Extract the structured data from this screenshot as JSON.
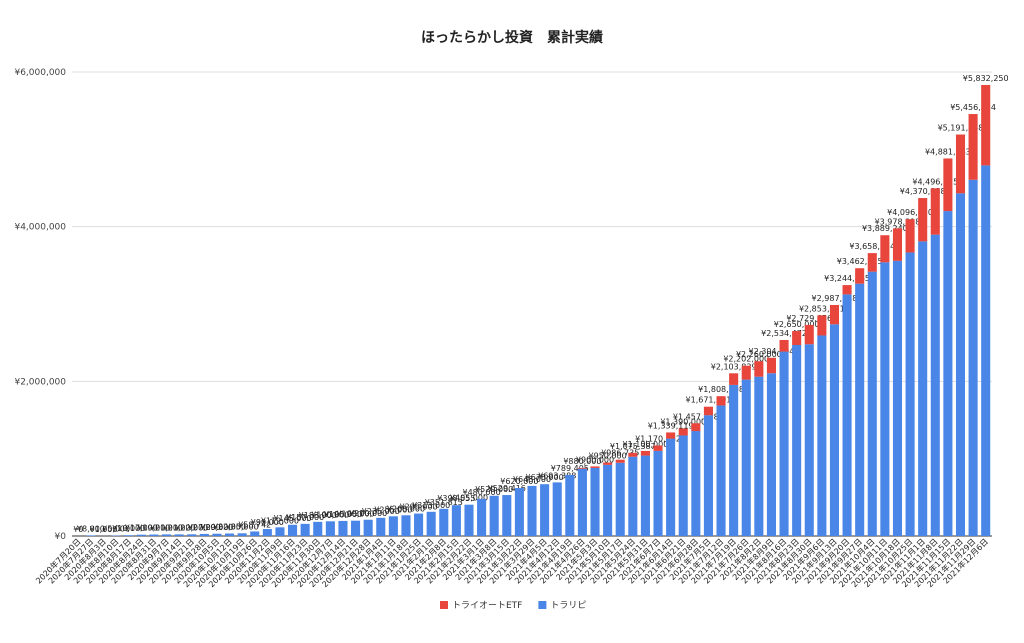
{
  "chart_data": {
    "type": "stacked_bar",
    "title": "ほったらかし投資　累計実績",
    "categories": [
      "2020年7月20日",
      "2020年7月27日",
      "2020年8月3日",
      "2020年8月10日",
      "2020年8月17日",
      "2020年8月24日",
      "2020年8月31日",
      "2020年9月7日",
      "2020年9月14日",
      "2020年9月21日",
      "2020年9月28日",
      "2020年10月5日",
      "2020年10月12日",
      "2020年10月19日",
      "2020年10月26日",
      "2020年11月2日",
      "2020年11月9日",
      "2020年11月16日",
      "2020年11月23日",
      "2020年11月30日",
      "2020年12月7日",
      "2020年12月14日",
      "2020年12月21日",
      "2020年12月28日",
      "2021年1月4日",
      "2021年1月11日",
      "2021年1月18日",
      "2021年1月25日",
      "2021年2月1日",
      "2021年2月8日",
      "2021年2月15日",
      "2021年2月22日",
      "2021年3月1日",
      "2021年3月8日",
      "2021年3月15日",
      "2021年3月22日",
      "2021年3月29日",
      "2021年4月5日",
      "2021年4月12日",
      "2021年4月19日",
      "2021年4月26日",
      "2021年5月3日",
      "2021年5月10日",
      "2021年5月17日",
      "2021年5月24日",
      "2021年5月31日",
      "2021年6月7日",
      "2021年6月14日",
      "2021年6月21日",
      "2021年6月28日",
      "2021年7月5日",
      "2021年7月12日",
      "2021年7月19日",
      "2021年7月26日",
      "2021年8月2日",
      "2021年8月9日",
      "2021年8月16日",
      "2021年8月23日",
      "2021年8月30日",
      "2021年9月6日",
      "2021年9月13日",
      "2021年9月20日",
      "2021年9月27日",
      "2021年10月4日",
      "2021年10月11日",
      "2021年10月18日",
      "2021年10月25日",
      "2021年11月1日",
      "2021年11月8日",
      "2021年11月15日",
      "2021年11月22日",
      "2021年11月29日",
      "2021年12月6日"
    ],
    "series": [
      {
        "name": "トライオートETF",
        "color": "#e8453c",
        "values": [
          0,
          0,
          0,
          0,
          0,
          0,
          0,
          0,
          0,
          0,
          0,
          0,
          0,
          0,
          0,
          0,
          0,
          0,
          0,
          0,
          0,
          0,
          0,
          0,
          0,
          0,
          0,
          0,
          0,
          0,
          0,
          0,
          0,
          0,
          0,
          0,
          0,
          0,
          0,
          0,
          10000,
          20000,
          30000,
          40000,
          50000,
          60000,
          70000,
          80000,
          90000,
          100000,
          110000,
          120000,
          150000,
          180000,
          200000,
          200000,
          150000,
          180000,
          250000,
          260000,
          250000,
          120000,
          200000,
          240000,
          350000,
          420000,
          430000,
          560000,
          600000,
          680000,
          760000,
          850000,
          1040000
        ]
      },
      {
        "name": "トラリピ",
        "color": "#4a86e8",
        "values": [
          0,
          8000,
          1000,
          5000,
          10000,
          17000,
          19000,
          21000,
          21000,
          22000,
          27000,
          29000,
          32000,
          35000,
          58742,
          90000,
          112000,
          145000,
          157000,
          183000,
          190000,
          195000,
          198000,
          210000,
          235000,
          255000,
          268000,
          290000,
          313000,
          351813,
          398555,
          405000,
          480000,
          520000,
          529416,
          620000,
          648000,
          670000,
          693388,
          789405,
          870000,
          880000,
          920000,
          946735,
          1025387,
          1040000,
          1100682,
          1259119,
          1300000,
          1357378,
          1561901,
          1688108,
          1953839,
          2022000,
          2060000,
          2104404,
          2384472,
          2470000,
          2479656,
          2593031,
          2737538,
          3124465,
          3262715,
          3418114,
          3539240,
          3558318,
          3666410,
          3810088,
          3896375,
          4201863,
          4431458,
          4606324,
          4792250
        ]
      }
    ],
    "total_labels": [
      "¥0",
      "¥8,000",
      "¥1,000",
      "¥5,000",
      "¥10,000",
      "¥17,000",
      "¥19,000",
      "¥21,000",
      "¥21,000",
      "¥22,000",
      "¥27,000",
      "¥29,000",
      "¥32,000",
      "¥35,000",
      "¥58,742",
      "¥90,000",
      "¥112,000",
      "¥145,000",
      "¥157,000",
      "¥183,000",
      "¥190,000",
      "¥195,000",
      "¥198,000",
      "¥210,000",
      "¥235,000",
      "¥255,000",
      "¥268,000",
      "¥290,000",
      "¥313,000",
      "¥351,813",
      "¥398,555",
      "¥405,000",
      "¥480,000",
      "¥520,000",
      "¥529,416",
      "¥620,000",
      "¥648,000",
      "¥670,000",
      "¥693,388",
      "¥789,405",
      "¥880,000",
      "¥900,000",
      "¥950,000",
      "¥986,735",
      "¥1,075,387",
      "¥1,100,000",
      "¥1,170,682",
      "¥1,339,119",
      "¥1,390,000",
      "¥1,457,378",
      "¥1,671,901",
      "¥1,808,108",
      "¥2,103,839",
      "¥2,202,000",
      "¥2,260,000",
      "¥2,304,404",
      "¥2,534,472",
      "¥2,650,000",
      "¥2,729,656",
      "¥2,853,031",
      "¥2,987,538",
      "¥3,244,465",
      "¥3,462,715",
      "¥3,658,114",
      "¥3,889,240",
      "¥3,978,318",
      "¥4,096,410",
      "¥4,370,088",
      "¥4,496,375",
      "¥4,881,863",
      "¥5,191,458",
      "¥5,456,324",
      "¥5,832,250"
    ],
    "ylim": [
      0,
      6000000
    ],
    "yticks": [
      {
        "value": 0,
        "label": "¥0"
      },
      {
        "value": 2000000,
        "label": "¥2,000,000"
      },
      {
        "value": 4000000,
        "label": "¥4,000,000"
      },
      {
        "value": 6000000,
        "label": "¥6,000,000"
      }
    ],
    "grid": true,
    "legend": "bottom"
  }
}
